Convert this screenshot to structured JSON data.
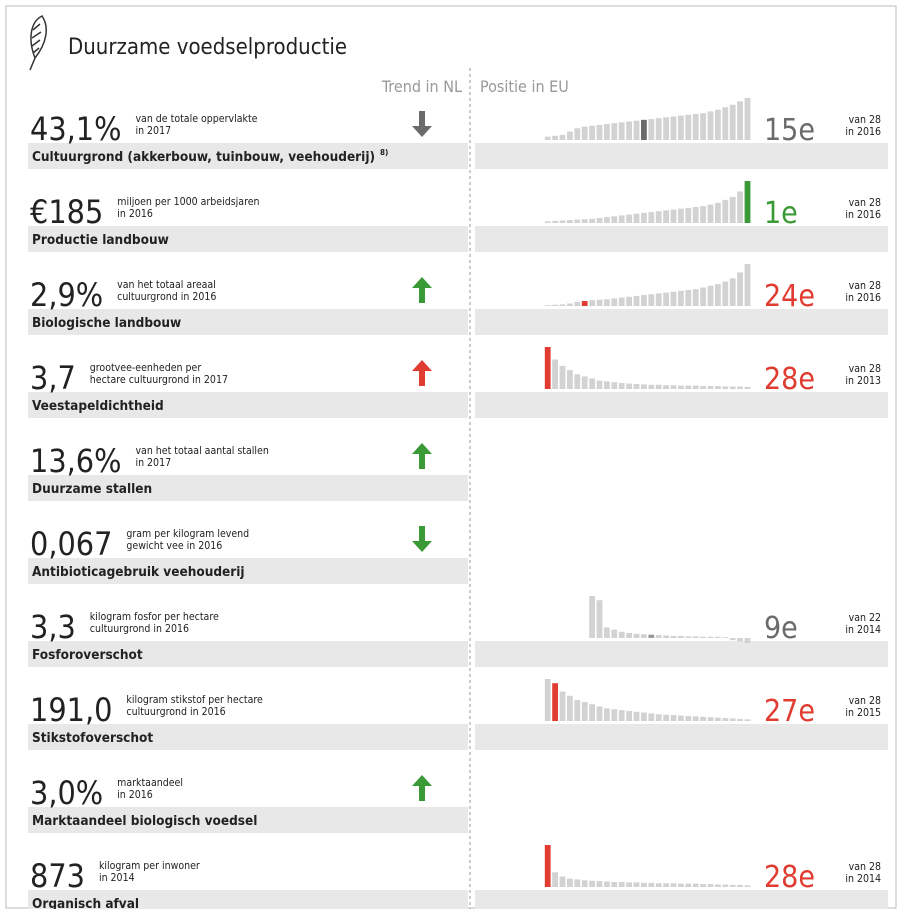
{
  "title": "Duurzame voedselproductie",
  "headers": {
    "trend": "Trend in NL",
    "position": "Positie in EU"
  },
  "rows": [
    {
      "value": "43,1%",
      "unit_lines": [
        "van de totale oppervlakte",
        "in 2017"
      ],
      "label": "Cultuurgrond (akkerbouw, tuinbouw, veehouderij)",
      "footnote": "8)",
      "trend": {
        "direction": "down",
        "color": "#6b6b6b"
      },
      "eu": {
        "rank": "15e",
        "rank_color": "#6b6b6b",
        "of": "van 28",
        "year": "in 2016",
        "highlight": 13,
        "highlight_color": "#6b6b6b",
        "bars": [
          8,
          10,
          12,
          20,
          28,
          32,
          34,
          36,
          38,
          40,
          42,
          44,
          46,
          48,
          50,
          52,
          54,
          56,
          58,
          60,
          62,
          64,
          68,
          72,
          78,
          84,
          92,
          100
        ]
      }
    },
    {
      "value": "€185",
      "unit_lines": [
        "miljoen per 1000 arbeidsjaren",
        "in 2016"
      ],
      "label": "Productie landbouw",
      "eu": {
        "rank": "1e",
        "rank_color": "#3a9a35",
        "of": "van 28",
        "year": "in 2016",
        "highlight": 27,
        "highlight_color": "#3a9a35",
        "bars": [
          4,
          5,
          6,
          7,
          8,
          9,
          10,
          12,
          14,
          16,
          18,
          20,
          22,
          24,
          26,
          28,
          30,
          32,
          34,
          36,
          38,
          40,
          44,
          48,
          55,
          62,
          75,
          100
        ]
      }
    },
    {
      "value": "2,9%",
      "unit_lines": [
        "van het totaal areaal",
        "cultuurgrond in 2016"
      ],
      "label": "Biologische landbouw",
      "trend": {
        "direction": "up",
        "color": "#3a9a35"
      },
      "eu": {
        "rank": "24e",
        "rank_color": "#e03c31",
        "of": "van 28",
        "year": "in 2016",
        "highlight": 5,
        "highlight_color": "#e03c31",
        "bars": [
          2,
          3,
          4,
          6,
          10,
          12,
          14,
          15,
          16,
          18,
          20,
          22,
          24,
          26,
          28,
          30,
          32,
          34,
          36,
          38,
          40,
          44,
          48,
          52,
          58,
          66,
          80,
          100
        ]
      }
    },
    {
      "value": "3,7",
      "unit_lines": [
        "grootvee-eenheden per",
        "hectare cultuurgrond in 2017"
      ],
      "label": "Veestapeldichtheid",
      "trend": {
        "direction": "up",
        "color": "#e03c31"
      },
      "eu": {
        "rank": "28e",
        "rank_color": "#e03c31",
        "of": "van 28",
        "year": "in 2013",
        "highlight": 0,
        "highlight_color": "#e03c31",
        "bars": [
          100,
          70,
          55,
          45,
          35,
          30,
          25,
          20,
          18,
          16,
          14,
          13,
          12,
          11,
          10,
          10,
          9,
          9,
          8,
          8,
          8,
          7,
          7,
          7,
          6,
          6,
          6,
          5
        ]
      }
    },
    {
      "value": "13,6%",
      "unit_lines": [
        "van het totaal aantal stallen",
        "in 2017"
      ],
      "label": "Duurzame stallen",
      "trend": {
        "direction": "up",
        "color": "#3a9a35"
      }
    },
    {
      "value": "0,067",
      "unit_lines": [
        "gram per kilogram levend",
        "gewicht vee in 2016"
      ],
      "label": "Antibioticagebruik veehouderij",
      "trend": {
        "direction": "down",
        "color": "#3a9a35"
      }
    },
    {
      "value": "3,3",
      "unit_lines": [
        "kilogram fosfor per hectare",
        "cultuurgrond in 2016"
      ],
      "label": "Fosforoverschot",
      "eu": {
        "rank": "9e",
        "rank_color": "#6b6b6b",
        "of": "van 22",
        "year": "in 2014",
        "highlight": 8,
        "highlight_color": "#9a9a9a",
        "bars": [
          100,
          90,
          25,
          20,
          15,
          12,
          10,
          9,
          8,
          7,
          6,
          5,
          5,
          4,
          4,
          3,
          3,
          3,
          2,
          -5,
          -8,
          -12
        ]
      }
    },
    {
      "value": "191,0",
      "unit_lines": [
        "kilogram stikstof per hectare",
        "cultuurgrond in 2016"
      ],
      "label": "Stikstofoverschot",
      "eu": {
        "rank": "27e",
        "rank_color": "#e03c31",
        "of": "van 28",
        "year": "in 2015",
        "highlight": 1,
        "highlight_color": "#e03c31",
        "bars": [
          100,
          90,
          70,
          60,
          50,
          45,
          40,
          35,
          30,
          28,
          26,
          24,
          22,
          20,
          18,
          16,
          15,
          14,
          13,
          12,
          11,
          10,
          9,
          8,
          7,
          6,
          5,
          4
        ]
      }
    },
    {
      "value": "3,0%",
      "unit_lines": [
        "marktaandeel",
        "in 2016"
      ],
      "label": "Marktaandeel biologisch voedsel",
      "trend": {
        "direction": "up",
        "color": "#3a9a35"
      }
    },
    {
      "value": "873",
      "unit_lines": [
        "kilogram per inwoner",
        "in 2014"
      ],
      "label": "Organisch afval",
      "eu": {
        "rank": "28e",
        "rank_color": "#e03c31",
        "of": "van 28",
        "year": "in 2014",
        "highlight": 0,
        "highlight_color": "#e03c31",
        "bars": [
          100,
          35,
          25,
          20,
          18,
          16,
          15,
          14,
          13,
          12,
          12,
          11,
          11,
          10,
          10,
          9,
          9,
          9,
          8,
          8,
          8,
          7,
          7,
          6,
          6,
          5,
          5,
          4
        ]
      }
    }
  ]
}
